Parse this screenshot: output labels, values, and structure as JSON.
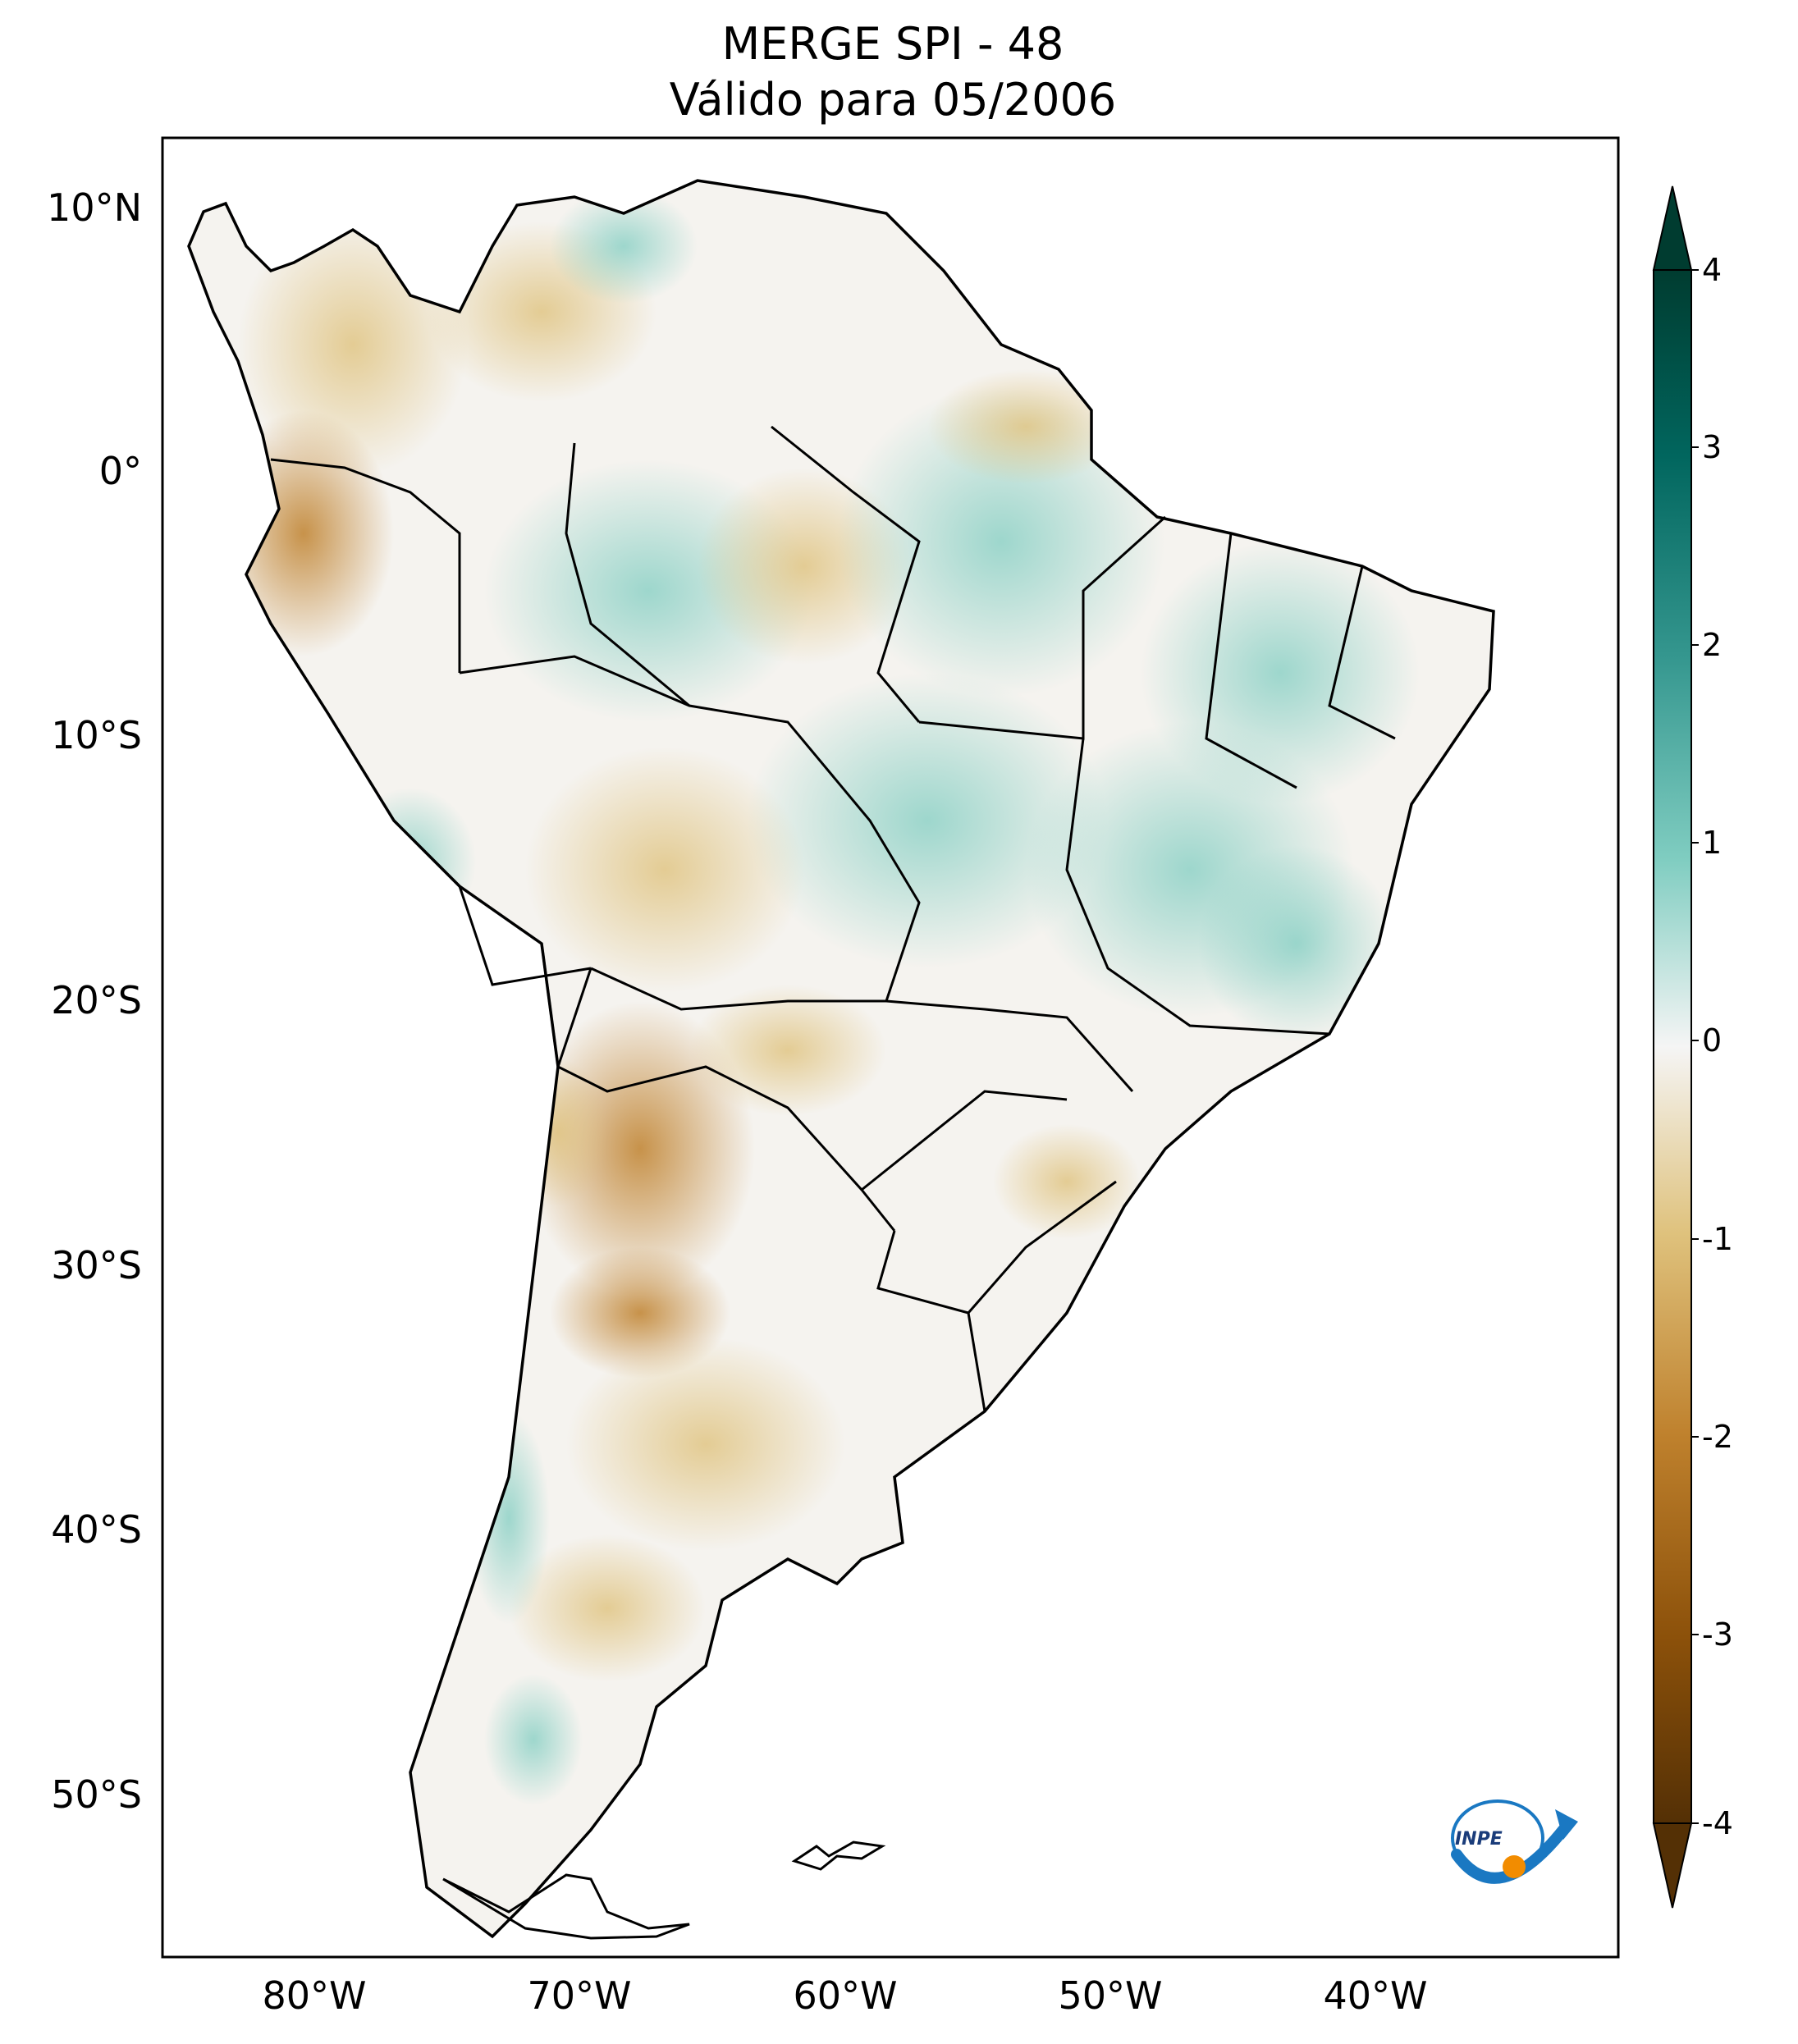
{
  "title": {
    "line1": "MERGE   SPI - 48",
    "line2": "Válido para 05/2006"
  },
  "map": {
    "lat_ticks": [
      "10°N",
      "0°",
      "10°S",
      "20°S",
      "30°S",
      "40°S",
      "50°S"
    ],
    "lon_ticks": [
      "80°W",
      "70°W",
      "60°W",
      "50°W",
      "40°W"
    ]
  },
  "colorbar": {
    "ticks": [
      "4",
      "3",
      "2",
      "1",
      "0",
      "-1",
      "-2",
      "-3",
      "-4"
    ],
    "range": [
      -4,
      4
    ],
    "colors": {
      "max": "#003c30",
      "mid": "#f5f5f5",
      "min": "#543005"
    }
  },
  "logo": {
    "text": "INPE"
  }
}
